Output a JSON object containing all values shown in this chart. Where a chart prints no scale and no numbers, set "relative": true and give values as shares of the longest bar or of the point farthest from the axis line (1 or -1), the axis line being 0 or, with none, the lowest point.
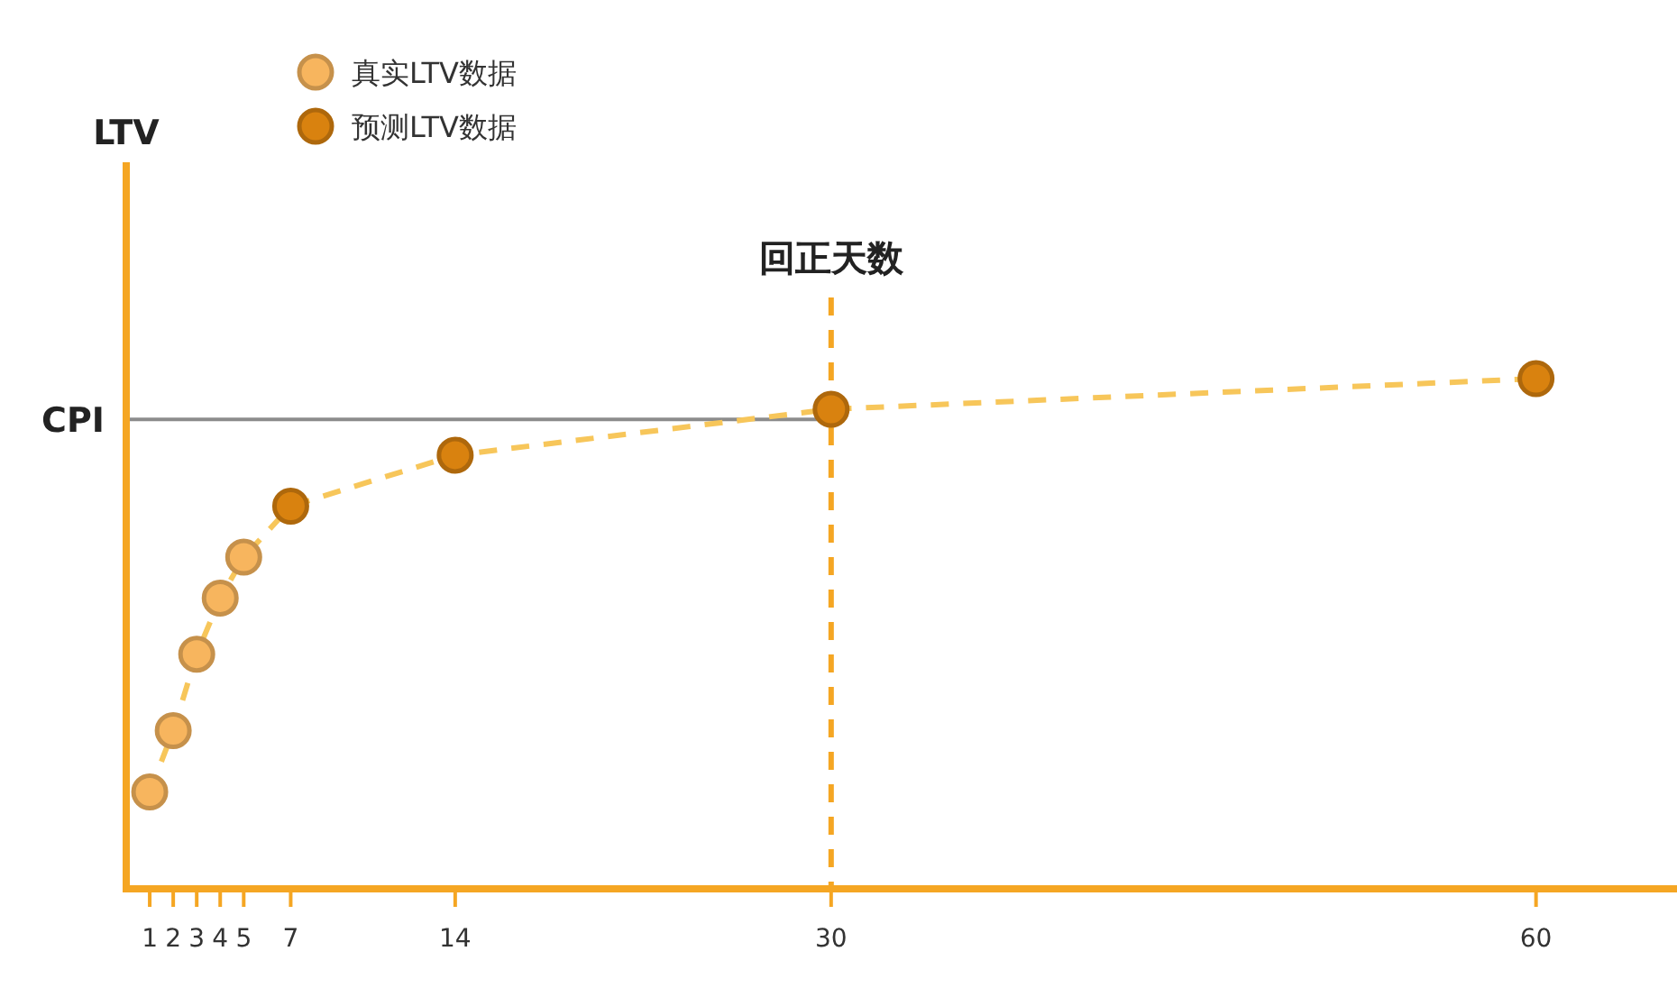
{
  "chart_data": {
    "type": "scatter",
    "annotations": [
      "LTV"
    ],
    "relative": true,
    "xlim": [
      0,
      66
    ],
    "xticks": [
      1,
      2,
      3,
      4,
      5,
      7,
      14,
      30,
      60
    ],
    "legend": "top left",
    "marker": "circle",
    "series": [
      {
        "type": "line",
        "color": "#f7c65a",
        "line_style": "dashed",
        "marker": "none",
        "x": [
          1,
          2,
          3,
          4,
          5,
          7,
          14,
          30,
          60
        ],
        "values": [
          0.19,
          0.31,
          0.46,
          0.57,
          0.65,
          0.75,
          0.85,
          0.94,
          1
        ]
      },
      {
        "name": "真实LTV数据",
        "color": "#f7b55e",
        "x": [
          1,
          2,
          3,
          4,
          5
        ],
        "values": [
          0.19,
          0.31,
          0.46,
          0.57,
          0.65
        ]
      },
      {
        "name": "预测LTV数据",
        "color": "#d9820f",
        "x": [
          7,
          14,
          30,
          60
        ],
        "values": [
          0.75,
          0.85,
          0.94,
          1
        ]
      }
    ],
    "ref_lines": [
      {
        "axis": "y",
        "value": 0.92,
        "label": "CPI",
        "color": "#8c8c8c",
        "line_style": "solid"
      },
      {
        "axis": "x",
        "value": 30,
        "label": "回正天数",
        "color": "#f5a623",
        "line_style": "dashed"
      }
    ]
  }
}
